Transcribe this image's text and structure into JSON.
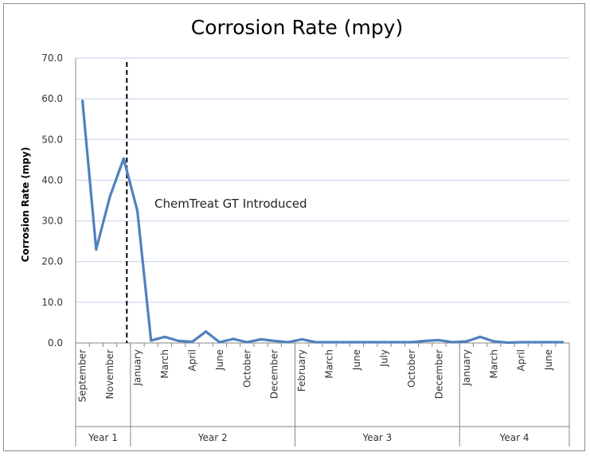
{
  "chart_data": {
    "type": "line",
    "title": "Corrosion Rate (mpy)",
    "ylabel": "Corrosion Rate (mpy)",
    "xlabel": "",
    "ylim": [
      0,
      70
    ],
    "yticks": [
      "0.0",
      "10.0",
      "20.0",
      "30.0",
      "40.0",
      "50.0",
      "60.0",
      "70.0"
    ],
    "grid": true,
    "line_color": "#4f81bd",
    "gridline_color": "#c3d3ea",
    "series": [
      {
        "values": [
          59.5,
          23,
          36,
          45.3,
          32.5,
          0.6,
          1.5,
          0.5,
          0.3,
          2.8,
          0.2,
          1,
          0.2,
          0.9,
          0.5,
          0.2,
          0.9,
          0.2,
          0.2,
          0.2,
          0.2,
          0.2,
          0.2,
          0.2,
          0.2,
          0.5,
          0.7,
          0.2,
          0.4,
          1.5,
          0.4,
          0.1,
          0.2,
          0.2,
          0.2,
          0.2
        ]
      }
    ],
    "category_labels": [
      "September",
      "",
      "November",
      "",
      "January",
      "",
      "March",
      "",
      "April",
      "",
      "June",
      "",
      "October",
      "",
      "December",
      "",
      "February",
      "",
      "March",
      "",
      "June",
      "",
      "July",
      "",
      "October",
      "",
      "December",
      "",
      "January",
      "",
      "March",
      "",
      "April",
      "",
      "June",
      ""
    ],
    "groups": [
      {
        "label": "Year 1",
        "start": 0,
        "end": 3
      },
      {
        "label": "Year 2",
        "start": 4,
        "end": 15
      },
      {
        "label": "Year 3",
        "start": 16,
        "end": 27
      },
      {
        "label": "Year 4",
        "start": 28,
        "end": 35
      }
    ],
    "annotation": {
      "text": "ChemTreat GT Introduced",
      "at_category_index": 4
    }
  }
}
